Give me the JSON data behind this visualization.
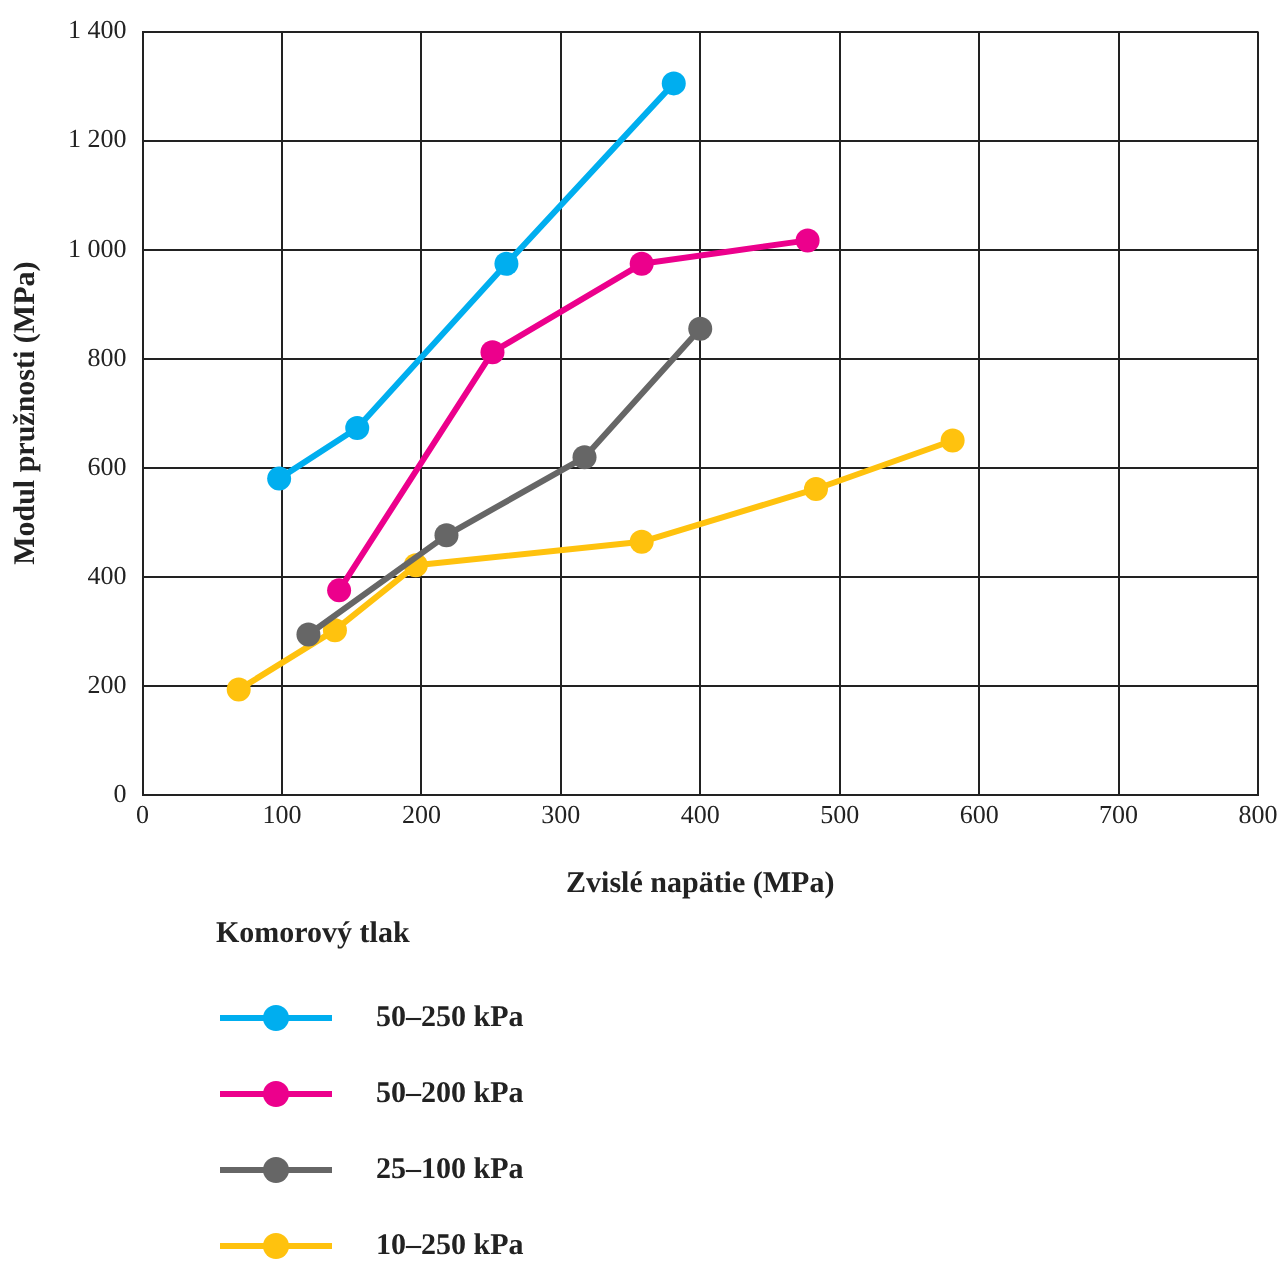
{
  "chart_data": {
    "type": "line",
    "xlabel": "Zvislé napätie (MPa)",
    "ylabel": "Modul pružnosti (MPa)",
    "legend_title": "Komorový tlak",
    "legend": "bottom",
    "grid": true,
    "marker": "circle",
    "line_style": "solid",
    "xlim": [
      0,
      800
    ],
    "xticks": [
      0,
      100,
      200,
      300,
      400,
      500,
      600,
      700,
      800
    ],
    "ylim": [
      0,
      1400
    ],
    "yticks": [
      0,
      200,
      400,
      600,
      800,
      {
        "value": 1000,
        "label": "1 000"
      },
      {
        "value": 1200,
        "label": "1 200"
      },
      {
        "value": 1400,
        "label": "1 400"
      }
    ],
    "series": [
      {
        "name": "50–250 kPa",
        "color": "#00aeef",
        "x": [
          98,
          154,
          261,
          381
        ],
        "values": [
          580,
          673,
          974,
          1305
        ]
      },
      {
        "name": "50–200 kPa",
        "color": "#ec008c",
        "x": [
          141,
          251,
          358,
          477
        ],
        "values": [
          375,
          812,
          974,
          1017
        ]
      },
      {
        "name": "25–100 kPa",
        "color": "#666666",
        "x": [
          119,
          218,
          317,
          400
        ],
        "values": [
          294,
          476,
          619,
          855
        ]
      },
      {
        "name": "10–250 kPa",
        "color": "#ffc20e",
        "x": [
          69,
          138,
          196,
          358,
          483,
          581
        ],
        "values": [
          193,
          302,
          421,
          464,
          561,
          650
        ]
      }
    ]
  }
}
